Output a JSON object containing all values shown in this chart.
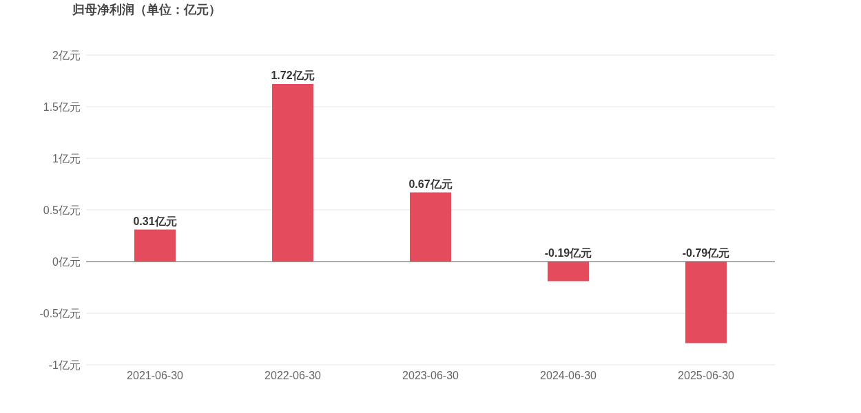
{
  "chart_data": {
    "type": "bar",
    "title": "归母净利润（单位：亿元）",
    "categories": [
      "2021-06-30",
      "2022-06-30",
      "2023-06-30",
      "2024-06-30",
      "2025-06-30"
    ],
    "values": [
      0.31,
      1.72,
      0.67,
      -0.19,
      -0.79
    ],
    "value_labels": [
      "0.31亿元",
      "1.72亿元",
      "0.67亿元",
      "-0.19亿元",
      "-0.79亿元"
    ],
    "color": "#e44c5e",
    "ylim": [
      -1,
      2
    ],
    "yticks": [
      {
        "value": -1,
        "label": "-1亿元"
      },
      {
        "value": -0.5,
        "label": "-0.5亿元"
      },
      {
        "value": 0,
        "label": "0亿元"
      },
      {
        "value": 0.5,
        "label": "0.5亿元"
      },
      {
        "value": 1,
        "label": "1亿元"
      },
      {
        "value": 1.5,
        "label": "1.5亿元"
      },
      {
        "value": 2,
        "label": "2亿元"
      }
    ],
    "grid": "y"
  }
}
